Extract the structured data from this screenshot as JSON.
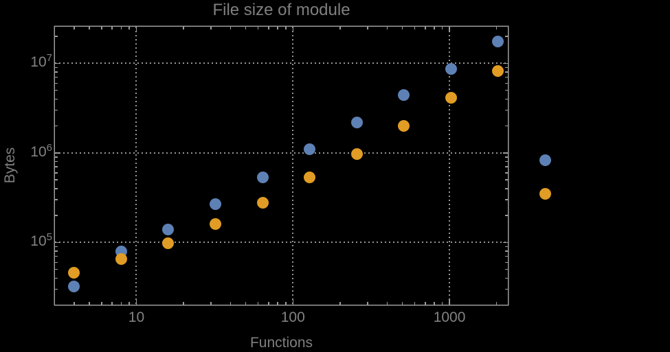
{
  "page": {
    "background": "#000000"
  },
  "chart_data": {
    "type": "scatter",
    "title": "File size of module",
    "xlabel": "Functions",
    "ylabel": "Bytes",
    "x_scale": "log",
    "y_scale": "log",
    "xlim": [
      3.02,
      2360
    ],
    "ylim": [
      20200,
      25700000
    ],
    "grid": "dotted gridlines at decade ticks, frame on all four sides with inward ticks",
    "legend_position": "none",
    "x": [
      4,
      8,
      16,
      32,
      64,
      128,
      256,
      512,
      1024,
      2048,
      4096
    ],
    "series": [
      {
        "name": "series-1-blue",
        "color": "#5E81B5",
        "values": [
          32000,
          80000,
          140000,
          270000,
          530000,
          1100000,
          2200000,
          4400000,
          8700000,
          17500000,
          830000
        ]
      },
      {
        "name": "series-2-orange",
        "color": "#E09C24",
        "values": [
          46000,
          65000,
          98000,
          160000,
          280000,
          530000,
          980000,
          2000000,
          4100000,
          8200000,
          350000
        ]
      }
    ],
    "x_tick_labels": [
      {
        "value": 10,
        "label": "10"
      },
      {
        "value": 100,
        "label": "100"
      },
      {
        "value": 1000,
        "label": "1000"
      }
    ],
    "y_tick_labels": [
      {
        "value": 100000,
        "mantissa": "10",
        "exponent": "5"
      },
      {
        "value": 1000000,
        "mantissa": "10",
        "exponent": "6"
      },
      {
        "value": 10000000,
        "mantissa": "10",
        "exponent": "7"
      }
    ],
    "note_points_outside_frame": "the two points at x=4096 are drawn to the right of the plot frame (unclipped)"
  },
  "style": {
    "background": "#000000",
    "frame_color": "#9c9c9c",
    "tick_color": "#9c9c9c",
    "grid_color": "#979797",
    "title_color": "#7f7f7f",
    "label_color": "#7f7f7f",
    "tick_label_color": "#828282"
  }
}
